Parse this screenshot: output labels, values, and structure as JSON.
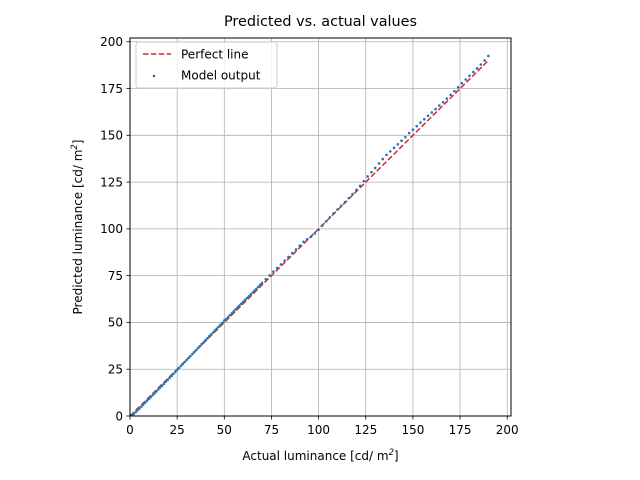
{
  "chart_data": {
    "type": "scatter",
    "title": "Predicted vs. actual values",
    "xlabel": "Actual luminance [cd/ m",
    "xlabel_sup": "2",
    "xlabel_end": "]",
    "ylabel": "Predicted luminance [cd/ m",
    "ylabel_sup": "2",
    "ylabel_end": "]",
    "xlim": [
      0,
      202
    ],
    "ylim": [
      0,
      202
    ],
    "xticks": [
      0,
      25,
      50,
      75,
      100,
      125,
      150,
      175,
      200
    ],
    "yticks": [
      0,
      25,
      50,
      75,
      100,
      125,
      150,
      175,
      200
    ],
    "grid": true,
    "legend_position": "top-left",
    "series": [
      {
        "name": "Perfect line",
        "kind": "line",
        "style": "dashed",
        "color": "#d62728",
        "x": [
          0,
          190
        ],
        "y": [
          0,
          190
        ]
      },
      {
        "name": "Model output",
        "kind": "scatter",
        "color": "#1f77b4",
        "x": [
          1,
          2,
          3,
          4,
          5,
          6,
          7,
          8,
          9,
          10,
          11,
          12,
          13,
          14,
          15,
          16,
          17,
          18,
          19,
          20,
          21,
          22,
          23,
          24,
          25,
          26,
          27,
          28,
          29,
          30,
          31,
          32,
          33,
          34,
          35,
          36,
          37,
          38,
          39,
          40,
          41,
          42,
          43,
          44,
          45,
          46,
          47,
          48,
          49,
          50,
          51,
          52,
          53,
          54,
          55,
          56,
          57,
          58,
          59,
          60,
          61,
          62,
          63,
          64,
          65,
          66,
          67,
          68,
          69,
          70,
          72,
          74,
          76,
          78,
          80,
          82,
          84,
          86,
          88,
          90,
          92,
          94,
          96,
          98,
          100,
          102,
          104,
          106,
          108,
          110,
          112,
          114,
          116,
          118,
          120,
          122,
          124,
          126,
          128,
          130,
          132,
          134,
          136,
          138,
          140,
          142,
          144,
          146,
          148,
          150,
          152,
          154,
          156,
          158,
          160,
          162,
          164,
          166,
          168,
          170,
          172,
          174,
          176,
          178,
          180,
          182,
          184,
          186,
          188,
          190
        ],
        "y": [
          0.3,
          1.1,
          2.1,
          3.0,
          4.0,
          5.0,
          6.0,
          7.1,
          8.1,
          9.1,
          10.1,
          11.1,
          12.1,
          13.1,
          14.2,
          15.2,
          16.2,
          17.2,
          18.3,
          19.3,
          20.4,
          21.4,
          22.5,
          23.5,
          24.6,
          25.7,
          26.7,
          27.8,
          28.9,
          29.9,
          31.0,
          32.0,
          33.1,
          34.1,
          35.2,
          36.3,
          37.3,
          38.4,
          39.4,
          40.5,
          41.5,
          42.6,
          43.6,
          44.6,
          45.7,
          46.7,
          47.7,
          48.8,
          49.8,
          51.0,
          51.8,
          52.9,
          53.9,
          54.9,
          56.0,
          57.0,
          58.0,
          59.0,
          60.0,
          61.0,
          62.0,
          63.0,
          64.0,
          65.0,
          66.0,
          67.0,
          68.0,
          69.0,
          70.1,
          71.1,
          73.1,
          75.1,
          77.1,
          79.1,
          81.0,
          83.0,
          85.0,
          87.0,
          89.0,
          91.0,
          93.1,
          94.5,
          95.8,
          97.6,
          99.5,
          101.8,
          104.0,
          106.2,
          108.3,
          110.3,
          112.3,
          114.3,
          116.4,
          118.6,
          120.8,
          123.0,
          125.5,
          128.0,
          130.3,
          132.6,
          135.0,
          137.3,
          139.5,
          141.4,
          143.3,
          145.2,
          147.1,
          149.0,
          151.2,
          153.0,
          154.9,
          156.8,
          158.6,
          160.4,
          162.2,
          164.0,
          165.9,
          167.7,
          169.6,
          171.6,
          173.6,
          175.7,
          177.8,
          179.8,
          181.8,
          183.8,
          185.8,
          187.8,
          190.0,
          192.4
        ]
      }
    ]
  }
}
